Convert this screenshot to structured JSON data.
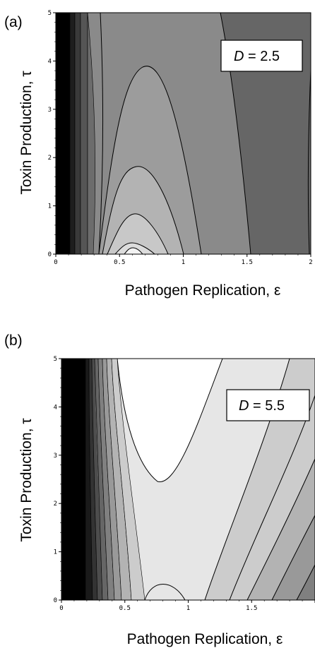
{
  "chart_data": [
    {
      "type": "heatmap",
      "panel_label": "(a)",
      "xlabel": "Pathogen Replication, ε",
      "ylabel": "Toxin Production, τ",
      "xlim": [
        0,
        2
      ],
      "ylim": [
        0,
        5
      ],
      "x_ticks": [
        "0",
        "0.5",
        "1",
        "1.5",
        "2"
      ],
      "y_ticks": [
        "0",
        "1",
        "2",
        "3",
        "4",
        "5"
      ],
      "annotation": {
        "variable": "D",
        "text": " = 2.5"
      },
      "grid": false,
      "legend": "none",
      "regions_light_to_dark": [
        "#f2f2f2",
        "#dcdcdc",
        "#c8c8c8",
        "#b3b3b3",
        "#9c9c9c",
        "#8a8a8a",
        "#666666",
        "#000000"
      ]
    },
    {
      "type": "heatmap",
      "panel_label": "(b)",
      "xlabel": "Pathogen Replication, ε",
      "ylabel": "Toxin Production, τ",
      "xlim": [
        0,
        2
      ],
      "ylim": [
        0,
        5
      ],
      "x_ticks": [
        "0",
        "0.5",
        "1",
        "1.5",
        ""
      ],
      "y_ticks": [
        "0",
        "1",
        "2",
        "3",
        "4",
        "5"
      ],
      "annotation": {
        "variable": "D",
        "text": " = 5.5"
      },
      "grid": false,
      "legend": "none",
      "regions_light_to_dark": [
        "#ffffff",
        "#e6e6e6",
        "#cccccc",
        "#b3b3b3",
        "#999999",
        "#808080",
        "#000000"
      ]
    }
  ]
}
